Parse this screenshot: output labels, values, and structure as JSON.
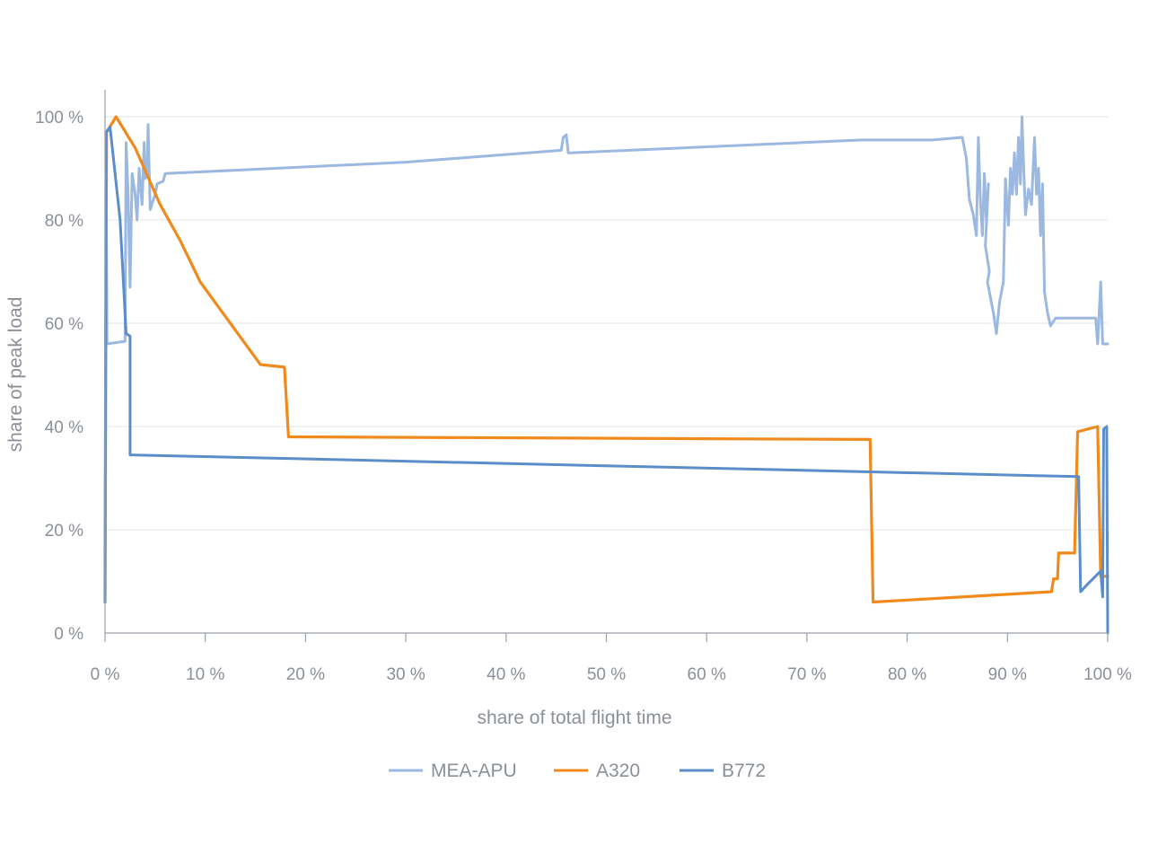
{
  "chart_data": {
    "type": "line",
    "xlabel": "share of total flight time",
    "ylabel": "share of peak load",
    "xlim": [
      0,
      100
    ],
    "ylim": [
      0,
      100
    ],
    "grid": "horizontal",
    "legend_position": "bottom",
    "x_ticks": [
      {
        "value": 0,
        "label": "0 %"
      },
      {
        "value": 10,
        "label": "10 %"
      },
      {
        "value": 20,
        "label": "20 %"
      },
      {
        "value": 30,
        "label": "30 %"
      },
      {
        "value": 40,
        "label": "40 %"
      },
      {
        "value": 50,
        "label": "50 %"
      },
      {
        "value": 60,
        "label": "60 %"
      },
      {
        "value": 70,
        "label": "70 %"
      },
      {
        "value": 80,
        "label": "80 %"
      },
      {
        "value": 90,
        "label": "90 %"
      },
      {
        "value": 100,
        "label": "100 %"
      }
    ],
    "y_ticks": [
      {
        "value": 0,
        "label": "0 %"
      },
      {
        "value": 20,
        "label": "20 %"
      },
      {
        "value": 40,
        "label": "40 %"
      },
      {
        "value": 60,
        "label": "60 %"
      },
      {
        "value": 80,
        "label": "80 %"
      },
      {
        "value": 100,
        "label": "100 %"
      }
    ],
    "series": [
      {
        "name": "MEA-APU",
        "color": "#9ab8e0",
        "points": [
          [
            0.1,
            96
          ],
          [
            0.2,
            56
          ],
          [
            2.0,
            56.5
          ],
          [
            2.1,
            95
          ],
          [
            2.3,
            85
          ],
          [
            2.5,
            67
          ],
          [
            2.7,
            89
          ],
          [
            3.0,
            85
          ],
          [
            3.2,
            80
          ],
          [
            3.4,
            90
          ],
          [
            3.7,
            83
          ],
          [
            3.9,
            95
          ],
          [
            4.0,
            88
          ],
          [
            4.2,
            90
          ],
          [
            4.3,
            98.5
          ],
          [
            4.5,
            82
          ],
          [
            5.0,
            85
          ],
          [
            5.2,
            87
          ],
          [
            5.8,
            87.5
          ],
          [
            6.0,
            89
          ],
          [
            30,
            91.2
          ],
          [
            45.5,
            93.5
          ],
          [
            45.7,
            96
          ],
          [
            46.0,
            96.5
          ],
          [
            46.2,
            93
          ],
          [
            75.5,
            95.5
          ],
          [
            82.5,
            95.5
          ],
          [
            85.5,
            96
          ],
          [
            85.9,
            92
          ],
          [
            86.2,
            84
          ],
          [
            86.6,
            81
          ],
          [
            86.9,
            77
          ],
          [
            87.1,
            96
          ],
          [
            87.3,
            84
          ],
          [
            87.5,
            77
          ],
          [
            87.7,
            89
          ],
          [
            87.9,
            80
          ],
          [
            88.1,
            87
          ],
          [
            87.8,
            75
          ],
          [
            88.2,
            70
          ],
          [
            88.0,
            68
          ],
          [
            88.6,
            62
          ],
          [
            88.9,
            58
          ],
          [
            89.2,
            64
          ],
          [
            89.6,
            68
          ],
          [
            89.8,
            88
          ],
          [
            90.1,
            79
          ],
          [
            90.3,
            90
          ],
          [
            90.5,
            85
          ],
          [
            90.7,
            93
          ],
          [
            90.9,
            85
          ],
          [
            91.1,
            96
          ],
          [
            91.3,
            87
          ],
          [
            91.45,
            100
          ],
          [
            91.6,
            91
          ],
          [
            91.8,
            81
          ],
          [
            92.1,
            86
          ],
          [
            92.4,
            83
          ],
          [
            92.7,
            96
          ],
          [
            92.9,
            85
          ],
          [
            93.1,
            90
          ],
          [
            93.3,
            77
          ],
          [
            93.5,
            87
          ],
          [
            93.7,
            66
          ],
          [
            94.0,
            62
          ],
          [
            94.3,
            59.5
          ],
          [
            94.8,
            61
          ],
          [
            98.8,
            61
          ],
          [
            99.0,
            56
          ],
          [
            99.3,
            68
          ],
          [
            99.5,
            56
          ],
          [
            100,
            56
          ]
        ]
      },
      {
        "name": "A320",
        "color": "#f08a1c",
        "points": [
          [
            0.0,
            6
          ],
          [
            0.15,
            97
          ],
          [
            1.1,
            100
          ],
          [
            3.0,
            94
          ],
          [
            5.5,
            83
          ],
          [
            7.5,
            76
          ],
          [
            9.5,
            68
          ],
          [
            12.5,
            60
          ],
          [
            15.5,
            52
          ],
          [
            17.9,
            51.5
          ],
          [
            18.3,
            38
          ],
          [
            76.3,
            37.5
          ],
          [
            76.6,
            6
          ],
          [
            94.4,
            8
          ],
          [
            94.6,
            10.5
          ],
          [
            95.0,
            10.5
          ],
          [
            95.1,
            15.5
          ],
          [
            96.7,
            15.5
          ],
          [
            97.0,
            39
          ],
          [
            99.0,
            40
          ],
          [
            99.3,
            11
          ],
          [
            100,
            11
          ]
        ]
      },
      {
        "name": "B772",
        "color": "#5b8ec9",
        "points": [
          [
            0.0,
            6
          ],
          [
            0.1,
            97
          ],
          [
            0.5,
            98
          ],
          [
            1.5,
            80
          ],
          [
            2.1,
            58
          ],
          [
            2.5,
            57.5
          ],
          [
            2.5,
            34.5
          ],
          [
            97.1,
            30.3
          ],
          [
            97.3,
            8
          ],
          [
            98.0,
            9.5
          ],
          [
            99.3,
            12
          ],
          [
            99.5,
            7
          ],
          [
            99.6,
            39.5
          ],
          [
            99.9,
            40
          ],
          [
            100,
            0
          ]
        ]
      }
    ]
  }
}
